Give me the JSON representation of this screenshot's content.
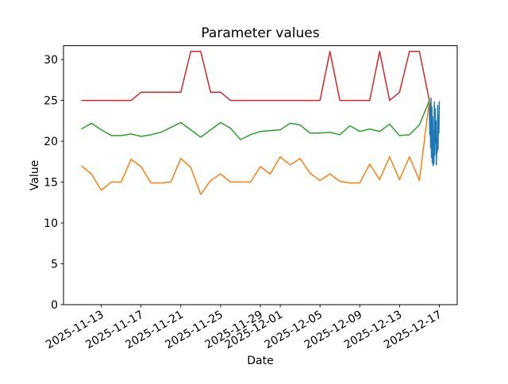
{
  "chart_data": {
    "type": "line",
    "title": "Parameter values",
    "xlabel": "Date",
    "ylabel": "Value",
    "background_color": "#ffffff",
    "axes_color": "#000000",
    "grid": false,
    "legend": false,
    "ylim": [
      0,
      31.7
    ],
    "y_ticks": [
      0,
      5,
      10,
      15,
      20,
      25,
      30
    ],
    "x_tick_labels": [
      "2025-11-13",
      "2025-11-17",
      "2025-11-21",
      "2025-11-25",
      "2025-11-29",
      "2025-12-01",
      "2025-12-05",
      "2025-12-09",
      "2025-12-13",
      "2025-12-17"
    ],
    "x_tick_rotation_deg": 30,
    "series": [
      {
        "color_name": "blue",
        "color": "#1f77b4",
        "x": [
          "2025-12-16T00:00",
          "2025-12-16T01:00",
          "2025-12-16T02:00",
          "2025-12-16T03:00",
          "2025-12-16T04:00",
          "2025-12-16T05:00",
          "2025-12-16T06:00",
          "2025-12-16T07:00",
          "2025-12-16T08:00",
          "2025-12-16T09:00",
          "2025-12-16T10:00",
          "2025-12-16T11:00",
          "2025-12-16T12:00",
          "2025-12-16T13:00",
          "2025-12-16T14:00",
          "2025-12-16T15:00",
          "2025-12-16T16:00",
          "2025-12-16T17:00",
          "2025-12-16T18:00",
          "2025-12-16T19:00",
          "2025-12-16T20:00",
          "2025-12-16T21:00",
          "2025-12-16T22:00",
          "2025-12-16T23:00",
          "2025-12-17T00:00"
        ],
        "values": [
          25.0,
          20.8,
          24.6,
          19.2,
          25.3,
          18.0,
          24.2,
          17.4,
          23.0,
          17.0,
          21.3,
          17.2,
          24.8,
          18.3,
          24.0,
          19.8,
          22.5,
          17.1,
          20.4,
          18.6,
          24.4,
          19.0,
          23.2,
          21.0,
          24.9
        ]
      },
      {
        "color_name": "orange",
        "color": "#ff7f0e",
        "x": [
          "2025-11-11",
          "2025-11-12",
          "2025-11-13",
          "2025-11-14",
          "2025-11-15",
          "2025-11-16",
          "2025-11-17",
          "2025-11-18",
          "2025-11-19",
          "2025-11-20",
          "2025-11-21",
          "2025-11-22",
          "2025-11-23",
          "2025-11-24",
          "2025-11-25",
          "2025-11-26",
          "2025-11-27",
          "2025-11-28",
          "2025-11-29",
          "2025-11-30",
          "2025-12-01",
          "2025-12-02",
          "2025-12-03",
          "2025-12-04",
          "2025-12-05",
          "2025-12-06",
          "2025-12-07",
          "2025-12-08",
          "2025-12-09",
          "2025-12-10",
          "2025-12-11",
          "2025-12-12",
          "2025-12-13",
          "2025-12-14",
          "2025-12-15",
          "2025-12-16"
        ],
        "values": [
          17.0,
          16.0,
          14.0,
          15.0,
          15.0,
          17.8,
          16.9,
          14.9,
          14.9,
          15.0,
          17.9,
          16.8,
          13.5,
          15.2,
          16.0,
          15.0,
          15.0,
          15.0,
          16.9,
          16.0,
          18.1,
          17.1,
          17.9,
          16.1,
          15.2,
          16.0,
          15.1,
          14.9,
          14.9,
          17.2,
          15.3,
          18.1,
          15.3,
          18.1,
          15.2,
          25.0
        ]
      },
      {
        "color_name": "green",
        "color": "#2ca02c",
        "x": [
          "2025-11-11",
          "2025-11-12",
          "2025-11-13",
          "2025-11-14",
          "2025-11-15",
          "2025-11-16",
          "2025-11-17",
          "2025-11-18",
          "2025-11-19",
          "2025-11-20",
          "2025-11-21",
          "2025-11-22",
          "2025-11-23",
          "2025-11-24",
          "2025-11-25",
          "2025-11-26",
          "2025-11-27",
          "2025-11-28",
          "2025-11-29",
          "2025-11-30",
          "2025-12-01",
          "2025-12-02",
          "2025-12-03",
          "2025-12-04",
          "2025-12-05",
          "2025-12-06",
          "2025-12-07",
          "2025-12-08",
          "2025-12-09",
          "2025-12-10",
          "2025-12-11",
          "2025-12-12",
          "2025-12-13",
          "2025-12-14",
          "2025-12-15",
          "2025-12-16"
        ],
        "values": [
          21.5,
          22.2,
          21.4,
          20.7,
          20.7,
          20.9,
          20.6,
          20.8,
          21.1,
          21.7,
          22.3,
          21.4,
          20.5,
          21.4,
          22.3,
          21.6,
          20.2,
          20.8,
          21.2,
          21.3,
          21.4,
          22.2,
          22.0,
          21.0,
          21.0,
          21.1,
          20.8,
          21.9,
          21.2,
          21.5,
          21.2,
          22.1,
          20.7,
          20.8,
          22.0,
          25.0
        ]
      },
      {
        "color_name": "red",
        "color": "#d62728",
        "x": [
          "2025-11-11",
          "2025-11-12",
          "2025-11-13",
          "2025-11-14",
          "2025-11-15",
          "2025-11-16",
          "2025-11-17",
          "2025-11-18",
          "2025-11-19",
          "2025-11-20",
          "2025-11-21",
          "2025-11-22",
          "2025-11-23",
          "2025-11-24",
          "2025-11-25",
          "2025-11-26",
          "2025-11-27",
          "2025-11-28",
          "2025-11-29",
          "2025-11-30",
          "2025-12-01",
          "2025-12-02",
          "2025-12-03",
          "2025-12-04",
          "2025-12-05",
          "2025-12-06",
          "2025-12-07",
          "2025-12-08",
          "2025-12-09",
          "2025-12-10",
          "2025-12-11",
          "2025-12-12",
          "2025-12-13",
          "2025-12-14",
          "2025-12-15",
          "2025-12-16"
        ],
        "values": [
          25,
          25,
          25,
          25,
          25,
          25,
          26,
          26,
          26,
          26,
          26,
          31,
          31,
          26,
          26,
          25,
          25,
          25,
          25,
          25,
          25,
          25,
          25,
          25,
          25,
          31,
          25,
          25,
          25,
          25,
          31,
          25,
          26,
          31,
          31,
          25
        ]
      }
    ]
  }
}
